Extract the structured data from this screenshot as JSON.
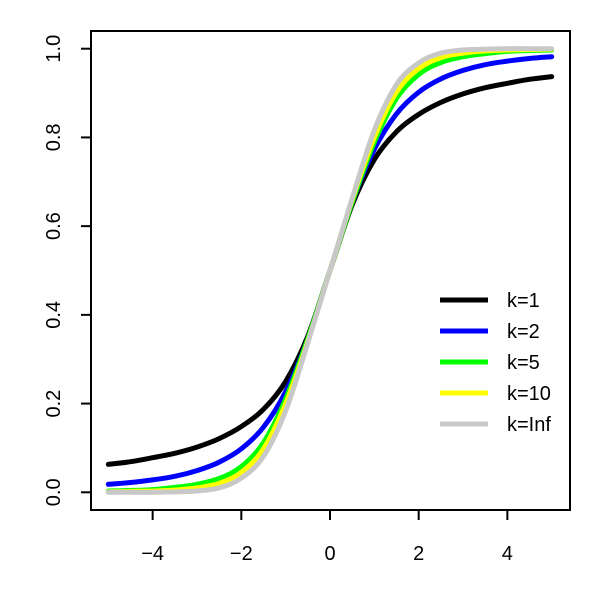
{
  "chart_data": {
    "type": "line",
    "title": "",
    "xlabel": "",
    "ylabel": "",
    "xlim": [
      -5,
      5
    ],
    "ylim": [
      0,
      1
    ],
    "grid": false,
    "legend_position": "bottom-right",
    "x": [
      -5,
      -4.5,
      -4,
      -3.5,
      -3,
      -2.5,
      -2,
      -1.5,
      -1,
      -0.5,
      0,
      0.5,
      1,
      1.5,
      2,
      2.5,
      3,
      3.5,
      4,
      4.5,
      5
    ],
    "x_ticks": [
      -4,
      -2,
      0,
      2,
      4
    ],
    "x_tick_labels": [
      "−4",
      "−2",
      "0",
      "2",
      "4"
    ],
    "y_ticks": [
      0.0,
      0.2,
      0.4,
      0.6,
      0.8,
      1.0
    ],
    "y_tick_labels": [
      "0.0",
      "0.2",
      "0.4",
      "0.6",
      "0.8",
      "1.0"
    ],
    "series": [
      {
        "name": "k=1",
        "color": "#000000",
        "values": [
          0.063,
          0.069,
          0.078,
          0.088,
          0.102,
          0.121,
          0.148,
          0.187,
          0.25,
          0.352,
          0.5,
          0.648,
          0.75,
          0.813,
          0.852,
          0.879,
          0.898,
          0.912,
          0.922,
          0.931,
          0.937
        ]
      },
      {
        "name": "k=2",
        "color": "#0000ff",
        "values": [
          0.018,
          0.022,
          0.028,
          0.036,
          0.049,
          0.068,
          0.098,
          0.147,
          0.227,
          0.346,
          0.5,
          0.654,
          0.773,
          0.853,
          0.902,
          0.932,
          0.951,
          0.964,
          0.972,
          0.978,
          0.982
        ]
      },
      {
        "name": "k=5",
        "color": "#00ff00",
        "values": [
          0.003,
          0.004,
          0.006,
          0.011,
          0.018,
          0.031,
          0.058,
          0.112,
          0.211,
          0.346,
          0.5,
          0.654,
          0.789,
          0.888,
          0.942,
          0.969,
          0.982,
          0.989,
          0.994,
          0.996,
          0.997
        ]
      },
      {
        "name": "k=10",
        "color": "#ffff00",
        "values": [
          0.001,
          0.002,
          0.003,
          0.005,
          0.01,
          0.02,
          0.045,
          0.098,
          0.2,
          0.34,
          0.5,
          0.66,
          0.8,
          0.902,
          0.955,
          0.98,
          0.99,
          0.995,
          0.997,
          0.998,
          0.999
        ]
      },
      {
        "name": "k=Inf",
        "color": "#c8c8c8",
        "values": [
          0.0,
          0.0,
          0.0,
          0.001,
          0.003,
          0.01,
          0.032,
          0.081,
          0.184,
          0.337,
          0.5,
          0.663,
          0.816,
          0.919,
          0.968,
          0.99,
          0.997,
          0.999,
          1.0,
          1.0,
          1.0
        ]
      }
    ]
  }
}
